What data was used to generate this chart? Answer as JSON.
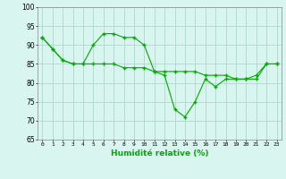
{
  "line1": [
    92,
    89,
    86,
    85,
    85,
    90,
    93,
    93,
    92,
    92,
    90,
    83,
    82,
    73,
    71,
    75,
    81,
    79,
    81,
    81,
    81,
    82,
    85,
    85
  ],
  "line2": [
    92,
    89,
    86,
    85,
    85,
    85,
    85,
    85,
    84,
    84,
    84,
    83,
    83,
    83,
    83,
    83,
    82,
    82,
    82,
    81,
    81,
    81,
    85,
    85
  ],
  "xlabel": "Humidité relative (%)",
  "ylim": [
    65,
    100
  ],
  "yticks": [
    65,
    70,
    75,
    80,
    85,
    90,
    95,
    100
  ],
  "xlim": [
    -0.5,
    23.5
  ],
  "line_color": "#00aa00",
  "bg_color": "#d8f5f0",
  "grid_color": "#b0d8cc",
  "figsize": [
    3.2,
    2.0
  ],
  "dpi": 100
}
